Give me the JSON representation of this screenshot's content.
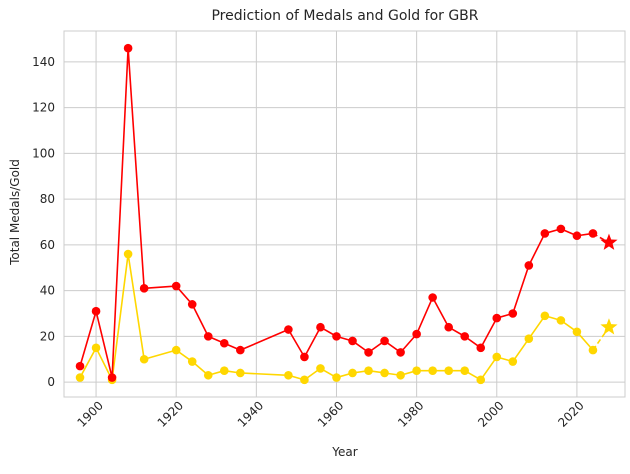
{
  "chart_data": {
    "type": "line",
    "title": "Prediction of Medals and Gold for GBR",
    "xlabel": "Year",
    "ylabel": "Total Medals/Gold",
    "xlim": [
      1892,
      2032
    ],
    "ylim": [
      -6.5,
      153.5
    ],
    "x_ticks": [
      1900,
      1920,
      1940,
      1960,
      1980,
      2000,
      2020
    ],
    "y_ticks": [
      0,
      20,
      40,
      60,
      80,
      100,
      120,
      140
    ],
    "grid": true,
    "series": [
      {
        "color": "#ff0000",
        "x": [
          1896,
          1900,
          1904,
          1908,
          1912,
          1920,
          1924,
          1928,
          1932,
          1936,
          1948,
          1952,
          1956,
          1960,
          1964,
          1968,
          1972,
          1976,
          1980,
          1984,
          1988,
          1992,
          1996,
          2000,
          2004,
          2008,
          2012,
          2016,
          2020,
          2024
        ],
        "y": [
          7,
          31,
          2,
          146,
          41,
          42,
          34,
          20,
          17,
          14,
          23,
          11,
          24,
          20,
          18,
          13,
          18,
          13,
          21,
          37,
          24,
          20,
          15,
          28,
          30,
          51,
          65,
          67,
          64,
          65
        ],
        "prediction": {
          "x": 2028,
          "y": 61
        }
      },
      {
        "color": "#ffd700",
        "x": [
          1896,
          1900,
          1904,
          1908,
          1912,
          1920,
          1924,
          1928,
          1932,
          1936,
          1948,
          1952,
          1956,
          1960,
          1964,
          1968,
          1972,
          1976,
          1980,
          1984,
          1988,
          1992,
          1996,
          2000,
          2004,
          2008,
          2012,
          2016,
          2020,
          2024
        ],
        "y": [
          2,
          15,
          1,
          56,
          10,
          14,
          9,
          3,
          5,
          4,
          3,
          1,
          6,
          2,
          4,
          5,
          4,
          3,
          5,
          5,
          5,
          5,
          1,
          11,
          9,
          19,
          29,
          27,
          22,
          14
        ],
        "prediction": {
          "x": 2028,
          "y": 24
        }
      }
    ]
  }
}
